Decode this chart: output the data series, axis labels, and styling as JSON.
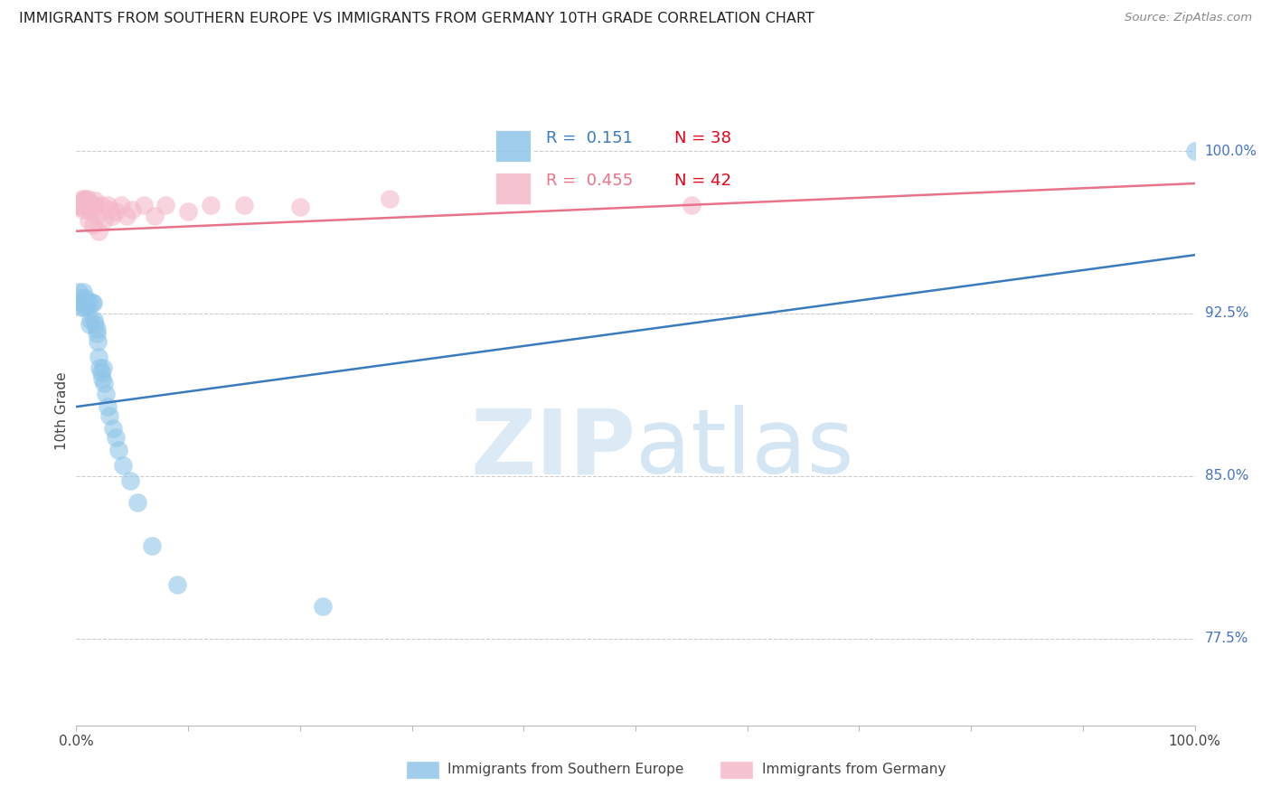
{
  "title": "IMMIGRANTS FROM SOUTHERN EUROPE VS IMMIGRANTS FROM GERMANY 10TH GRADE CORRELATION CHART",
  "source_text": "Source: ZipAtlas.com",
  "ylabel": "10th Grade",
  "right_ytick_labels": [
    "77.5%",
    "85.0%",
    "92.5%",
    "100.0%"
  ],
  "right_ytick_values": [
    0.775,
    0.85,
    0.925,
    1.0
  ],
  "legend_blue_r": "0.151",
  "legend_blue_n": "38",
  "legend_pink_r": "0.455",
  "legend_pink_n": "42",
  "blue_color": "#8fc5e8",
  "pink_color": "#f4b8c8",
  "blue_line_color": "#3a7abf",
  "pink_line_color": "#e8728a",
  "blue_scatter": {
    "x": [
      0.002,
      0.004,
      0.004,
      0.005,
      0.006,
      0.007,
      0.008,
      0.009,
      0.01,
      0.011,
      0.012,
      0.013,
      0.014,
      0.015,
      0.016,
      0.017,
      0.018,
      0.018,
      0.019,
      0.02,
      0.021,
      0.022,
      0.023,
      0.024,
      0.025,
      0.026,
      0.028,
      0.03,
      0.033,
      0.035,
      0.038,
      0.042,
      0.048,
      0.055,
      0.068,
      0.09,
      0.22,
      1.0
    ],
    "y": [
      0.935,
      0.93,
      0.928,
      0.932,
      0.935,
      0.928,
      0.929,
      0.932,
      0.928,
      0.93,
      0.92,
      0.922,
      0.93,
      0.93,
      0.922,
      0.92,
      0.918,
      0.916,
      0.912,
      0.905,
      0.9,
      0.898,
      0.895,
      0.9,
      0.893,
      0.888,
      0.882,
      0.878,
      0.872,
      0.868,
      0.862,
      0.855,
      0.848,
      0.838,
      0.818,
      0.8,
      0.79,
      1.0
    ]
  },
  "pink_scatter": {
    "x": [
      0.002,
      0.003,
      0.004,
      0.005,
      0.005,
      0.006,
      0.006,
      0.007,
      0.007,
      0.008,
      0.008,
      0.009,
      0.009,
      0.01,
      0.01,
      0.011,
      0.012,
      0.013,
      0.014,
      0.015,
      0.016,
      0.017,
      0.018,
      0.02,
      0.022,
      0.025,
      0.028,
      0.03,
      0.032,
      0.035,
      0.04,
      0.045,
      0.05,
      0.06,
      0.07,
      0.08,
      0.1,
      0.12,
      0.15,
      0.2,
      0.28,
      0.55
    ],
    "y": [
      0.975,
      0.975,
      0.974,
      0.978,
      0.977,
      0.976,
      0.973,
      0.977,
      0.975,
      0.976,
      0.978,
      0.975,
      0.977,
      0.978,
      0.976,
      0.968,
      0.975,
      0.972,
      0.975,
      0.966,
      0.975,
      0.977,
      0.97,
      0.963,
      0.975,
      0.968,
      0.975,
      0.973,
      0.97,
      0.972,
      0.975,
      0.97,
      0.973,
      0.975,
      0.97,
      0.975,
      0.972,
      0.975,
      0.975,
      0.974,
      0.978,
      0.975
    ]
  },
  "blue_line": {
    "x0": 0.0,
    "y0": 0.882,
    "x1": 1.0,
    "y1": 0.952
  },
  "pink_line": {
    "x0": 0.0,
    "y0": 0.963,
    "x1": 1.0,
    "y1": 0.985
  },
  "xlim": [
    0.0,
    1.0
  ],
  "ylim": [
    0.735,
    1.025
  ],
  "watermark_zip": "ZIP",
  "watermark_atlas": "atlas",
  "background_color": "#ffffff"
}
